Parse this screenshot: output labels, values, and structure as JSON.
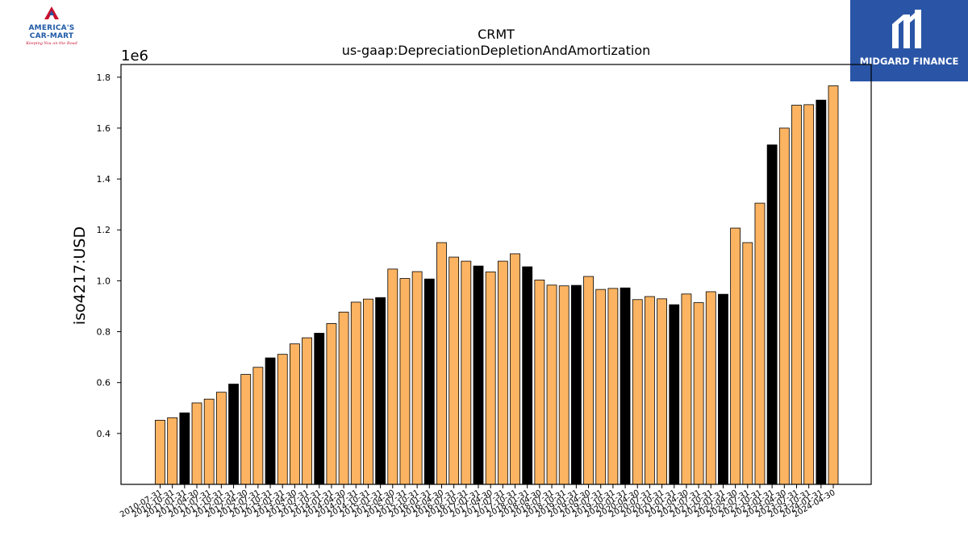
{
  "logos": {
    "left": {
      "line1": "AMERICA'S",
      "line2": "CAR-MART",
      "tagline": "Keeping You on the Road"
    },
    "right": {
      "text": "MIDGARD FINANCE"
    }
  },
  "colors": {
    "bar_default": "#fdb462",
    "bar_highlight": "#000000",
    "edge": "#000000"
  },
  "chart_data": {
    "type": "bar",
    "title": "CRMT",
    "subtitle": "us-gaap:DepreciationDepletionAndAmortization",
    "xlabel": "",
    "ylabel": "iso4217:USD",
    "y_multiplier_label": "1e6",
    "ylim": [
      0.2,
      1.85
    ],
    "yticks": [
      0.4,
      0.6,
      0.8,
      1.0,
      1.2,
      1.4,
      1.6,
      1.8
    ],
    "ytick_labels": [
      "0.4",
      "0.6",
      "0.8",
      "1.0",
      "1.2",
      "1.4",
      "1.6",
      "1.8"
    ],
    "grid": false,
    "legend": "none",
    "categories": [
      "2010-07-31",
      "2010-10-31",
      "2011-01-31",
      "2011-04-30",
      "2011-07-31",
      "2011-10-31",
      "2012-01-31",
      "2012-04-30",
      "2012-07-31",
      "2012-10-31",
      "2013-01-31",
      "2013-04-30",
      "2013-07-31",
      "2013-10-31",
      "2014-01-31",
      "2014-04-30",
      "2014-07-31",
      "2014-10-31",
      "2015-01-31",
      "2015-04-30",
      "2015-07-31",
      "2015-10-31",
      "2016-01-31",
      "2016-04-30",
      "2016-07-31",
      "2016-10-31",
      "2017-01-31",
      "2017-04-30",
      "2017-07-31",
      "2017-10-31",
      "2018-01-31",
      "2018-04-30",
      "2018-07-31",
      "2018-10-31",
      "2019-01-31",
      "2019-04-30",
      "2019-07-31",
      "2019-10-31",
      "2020-01-31",
      "2020-04-30",
      "2020-07-31",
      "2020-10-31",
      "2021-01-31",
      "2021-04-30",
      "2021-07-31",
      "2021-10-31",
      "2022-01-31",
      "2022-04-30",
      "2022-07-31",
      "2022-10-31",
      "2023-01-31",
      "2023-04-30",
      "2023-07-31",
      "2023-10-31",
      "2024-01-31",
      "2024-04-30"
    ],
    "values": [
      0.452,
      0.462,
      0.481,
      0.52,
      0.535,
      0.562,
      0.594,
      0.632,
      0.66,
      0.697,
      0.711,
      0.752,
      0.776,
      0.794,
      0.832,
      0.877,
      0.916,
      0.928,
      0.934,
      1.046,
      1.009,
      1.036,
      1.007,
      1.15,
      1.093,
      1.077,
      1.058,
      1.035,
      1.077,
      1.106,
      1.055,
      1.003,
      0.983,
      0.98,
      0.982,
      1.017,
      0.966,
      0.97,
      0.972,
      0.926,
      0.938,
      0.929,
      0.906,
      0.948,
      0.914,
      0.957,
      0.947,
      1.207,
      1.15,
      1.305,
      1.534,
      1.6,
      1.69,
      1.692,
      1.71,
      1.766
    ],
    "highlight": [
      false,
      false,
      true,
      false,
      false,
      false,
      true,
      false,
      false,
      true,
      false,
      false,
      false,
      true,
      false,
      false,
      false,
      false,
      true,
      false,
      false,
      false,
      true,
      false,
      false,
      false,
      true,
      false,
      false,
      false,
      true,
      false,
      false,
      false,
      true,
      false,
      false,
      false,
      true,
      false,
      false,
      false,
      true,
      false,
      false,
      false,
      true,
      false,
      false,
      false,
      true,
      false,
      false,
      false,
      true,
      false
    ]
  }
}
